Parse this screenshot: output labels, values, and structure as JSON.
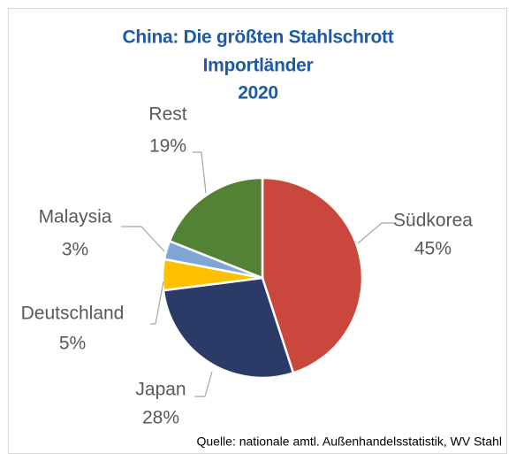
{
  "chart_data": {
    "type": "pie",
    "title": [
      "China: Die größten Stahlschrott",
      "Importländer",
      "2020"
    ],
    "categories": [
      "Südkorea",
      "Japan",
      "Deutschland",
      "Malaysia",
      "Rest"
    ],
    "values": [
      45,
      28,
      5,
      3,
      19
    ],
    "value_labels": [
      "45%",
      "28%",
      "5%",
      "3%",
      "19%"
    ],
    "colors": [
      "#c9473d",
      "#2b3a67",
      "#ffc000",
      "#7fa7d6",
      "#548235"
    ],
    "source": "Quelle: nationale amtl. Außenhandelsstatistik, WV Stahl"
  }
}
